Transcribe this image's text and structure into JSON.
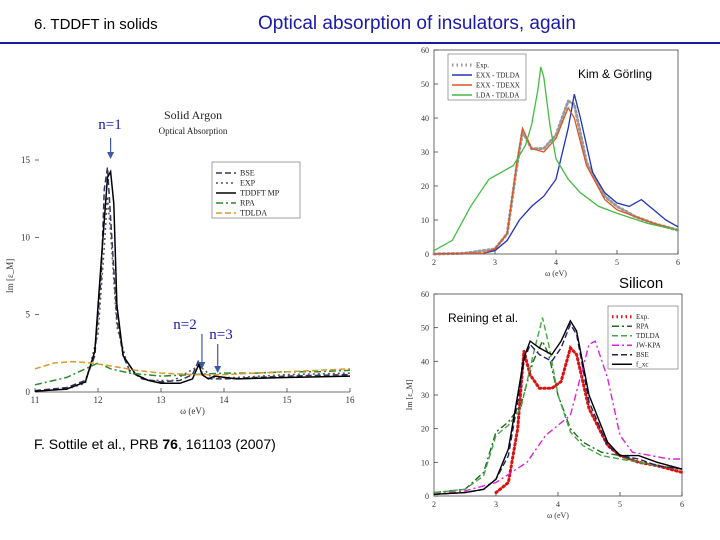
{
  "header": {
    "section": "6. TDDFT in solids",
    "title": "Optical absorption of insulators, again"
  },
  "citation": {
    "prefix": "F. Sottile et al., PRB ",
    "volume": "76",
    "rest": ", 161103 (2007)"
  },
  "colors": {
    "title_blue": "#1a1aa8"
  },
  "chart_data": [
    {
      "type": "line",
      "title": "Solid Argon",
      "subtitle": "Optical Absorption",
      "xlabel": "ω (eV)",
      "ylabel": "Im [ε_M]",
      "xlim": [
        11,
        16
      ],
      "ylim": [
        0,
        16
      ],
      "xticks": [
        "11",
        "12",
        "13",
        "14",
        "15",
        "16"
      ],
      "yticks": [
        "0",
        "5",
        "10",
        "15"
      ],
      "annotations": {
        "n1": "n=1",
        "n2": "n=2",
        "n3": "n=3"
      },
      "legend": [
        "BSE",
        "EXP",
        "TDDFT MP",
        "RPA",
        "TDLDA"
      ],
      "series": [
        {
          "name": "BSE",
          "color": "#333366",
          "x": [
            11,
            11.5,
            11.8,
            11.95,
            12.05,
            12.1,
            12.15,
            12.2,
            12.3,
            12.4,
            12.5,
            12.7,
            13,
            13.3,
            13.5,
            13.6,
            13.65,
            13.7,
            13.8,
            14,
            14.5,
            15,
            16
          ],
          "y": [
            0.1,
            0.3,
            0.8,
            2.5,
            8,
            14,
            15.5,
            12,
            5,
            2.5,
            1.5,
            0.9,
            0.7,
            0.8,
            1.2,
            2.2,
            1.3,
            1.0,
            0.9,
            0.9,
            1.0,
            1.1,
            1.2
          ]
        },
        {
          "name": "EXP",
          "color": "#555555",
          "x": [
            11.5,
            11.8,
            12,
            12.1,
            12.15,
            12.2,
            12.3,
            12.5,
            12.8,
            13.2,
            13.6,
            13.7,
            13.8,
            14.2,
            15,
            16
          ],
          "y": [
            0.2,
            0.6,
            4,
            10,
            13.5,
            11,
            4.5,
            1.4,
            0.8,
            0.8,
            1.8,
            1.5,
            1.0,
            1.0,
            1.2,
            1.3
          ]
        },
        {
          "name": "TDDFT MP",
          "color": "#000000",
          "x": [
            11,
            11.5,
            11.8,
            11.95,
            12.05,
            12.15,
            12.2,
            12.25,
            12.3,
            12.4,
            12.6,
            12.8,
            13,
            13.3,
            13.5,
            13.6,
            13.65,
            13.75,
            13.85,
            14.2,
            15,
            16
          ],
          "y": [
            0.05,
            0.2,
            0.7,
            2.8,
            9,
            14.8,
            15.2,
            13,
            6,
            2.5,
            1.2,
            0.8,
            0.6,
            0.6,
            0.9,
            1.9,
            1.2,
            0.9,
            1.1,
            0.9,
            1.0,
            1.1
          ]
        },
        {
          "name": "RPA",
          "color": "#2a8a2a",
          "x": [
            11,
            11.5,
            11.8,
            12,
            12.2,
            12.5,
            13,
            13.5,
            14,
            14.5,
            15,
            15.5,
            16
          ],
          "y": [
            0.5,
            1.0,
            1.6,
            2.0,
            1.6,
            1.3,
            1.1,
            1.2,
            1.3,
            1.3,
            1.4,
            1.4,
            1.5
          ]
        },
        {
          "name": "TDLDA",
          "color": "#d99a2b",
          "x": [
            11,
            11.3,
            11.6,
            11.9,
            12.2,
            12.6,
            13,
            13.5,
            14,
            14.5,
            15,
            15.5,
            16
          ],
          "y": [
            1.6,
            2.0,
            2.1,
            2.0,
            1.8,
            1.5,
            1.3,
            1.2,
            1.2,
            1.3,
            1.4,
            1.5,
            1.6
          ]
        }
      ]
    },
    {
      "type": "line",
      "title": "",
      "xlabel": "ω (eV)",
      "ylabel": "",
      "xlim": [
        2,
        6
      ],
      "ylim": [
        0,
        60
      ],
      "xticks": [
        "2",
        "3",
        "4",
        "5",
        "6"
      ],
      "yticks": [
        "0",
        "10",
        "20",
        "30",
        "40",
        "50",
        "60"
      ],
      "annotation": "Kim & Görling",
      "legend": [
        "Exp.",
        "EXX - TDLDA",
        "EXX - TDEXX",
        "LDA - TDLDA"
      ],
      "series": [
        {
          "name": "Exp.",
          "color": "#999999",
          "x": [
            2,
            2.5,
            3,
            3.2,
            3.35,
            3.45,
            3.6,
            3.8,
            4,
            4.2,
            4.3,
            4.5,
            4.8,
            5,
            5.3,
            5.6,
            6
          ],
          "y": [
            0,
            0.2,
            1.5,
            6,
            25,
            36,
            31,
            31,
            35,
            45,
            44,
            27,
            17,
            14,
            11,
            9,
            7
          ]
        },
        {
          "name": "EXX - TDLDA",
          "color": "#2233bb",
          "x": [
            2,
            2.8,
            3,
            3.2,
            3.4,
            3.6,
            3.8,
            4,
            4.2,
            4.3,
            4.4,
            4.6,
            4.8,
            5,
            5.2,
            5.4,
            5.6,
            5.8,
            6
          ],
          "y": [
            0,
            0.2,
            1,
            4,
            10,
            14,
            17,
            22,
            37,
            47,
            40,
            24,
            18,
            15,
            14,
            16,
            13,
            10,
            8
          ]
        },
        {
          "name": "EXX - TDEXX",
          "color": "#dd5522",
          "x": [
            2,
            2.8,
            3,
            3.2,
            3.35,
            3.45,
            3.6,
            3.8,
            4,
            4.2,
            4.3,
            4.5,
            4.8,
            5,
            5.3,
            5.6,
            6
          ],
          "y": [
            0,
            0.2,
            1.5,
            6,
            26,
            37,
            31,
            30,
            34,
            43,
            40,
            26,
            16,
            13,
            11,
            9,
            7
          ]
        },
        {
          "name": "LDA - TDLDA",
          "color": "#44bb44",
          "x": [
            2,
            2.3,
            2.6,
            2.9,
            3.1,
            3.3,
            3.5,
            3.6,
            3.7,
            3.75,
            3.8,
            3.9,
            4,
            4.2,
            4.4,
            4.7,
            5,
            5.5,
            6
          ],
          "y": [
            1,
            4,
            14,
            22,
            24,
            26,
            32,
            38,
            48,
            55,
            52,
            38,
            28,
            22,
            18,
            14,
            12,
            9,
            7
          ]
        }
      ]
    },
    {
      "type": "line",
      "title": "Silicon",
      "xlabel": "ω (eV)",
      "ylabel": "Im [ε_M]",
      "xlim": [
        2,
        6
      ],
      "ylim": [
        0,
        60
      ],
      "xticks": [
        "2",
        "3",
        "4",
        "5",
        "6"
      ],
      "yticks": [
        "0",
        "10",
        "20",
        "30",
        "40",
        "50",
        "60"
      ],
      "annotation": "Reining et al.",
      "legend": [
        "Exp.",
        "RPA",
        "TDLDA",
        "JW-KPA",
        "BSE",
        "f_xc"
      ],
      "series": [
        {
          "name": "Exp.",
          "color": "#dd1111",
          "x": [
            3,
            3.2,
            3.35,
            3.45,
            3.55,
            3.7,
            3.9,
            4.05,
            4.2,
            4.3,
            4.5,
            4.8,
            5,
            5.3,
            5.6,
            6
          ],
          "y": [
            1,
            4,
            20,
            43,
            36,
            32,
            32,
            34,
            44,
            42,
            26,
            15,
            12,
            10,
            9,
            7
          ]
        },
        {
          "name": "RPA",
          "color": "#226622",
          "x": [
            2,
            2.5,
            2.8,
            3,
            3.2,
            3.4,
            3.6,
            3.75,
            3.85,
            4,
            4.2,
            4.4,
            4.7,
            5,
            5.3,
            5.6,
            6
          ],
          "y": [
            1,
            2,
            7,
            19,
            22,
            27,
            40,
            46,
            42,
            30,
            20,
            16,
            13,
            12,
            10,
            9,
            8
          ]
        },
        {
          "name": "TDLDA",
          "color": "#44aa44",
          "x": [
            2,
            2.5,
            2.8,
            3,
            3.2,
            3.4,
            3.6,
            3.75,
            3.85,
            4,
            4.2,
            4.4,
            4.7,
            5,
            5.3,
            5.6,
            6
          ],
          "y": [
            1,
            2,
            6,
            18,
            21,
            26,
            42,
            53,
            45,
            30,
            19,
            15,
            12,
            11,
            10,
            9,
            8
          ]
        },
        {
          "name": "JW-KPA",
          "color": "#dd22dd",
          "x": [
            2,
            2.5,
            3,
            3.5,
            3.8,
            4,
            4.2,
            4.4,
            4.5,
            4.6,
            4.8,
            5,
            5.2,
            5.5,
            5.8,
            6
          ],
          "y": [
            0.5,
            1.5,
            4,
            10,
            18,
            21,
            24,
            38,
            45,
            46,
            35,
            18,
            13,
            12,
            11,
            11
          ]
        },
        {
          "name": "BSE",
          "color": "#222266",
          "x": [
            2,
            2.5,
            2.8,
            3,
            3.2,
            3.35,
            3.45,
            3.55,
            3.7,
            3.9,
            4.05,
            4.2,
            4.3,
            4.5,
            4.8,
            5,
            5.3,
            5.6,
            6
          ],
          "y": [
            0.5,
            1,
            2,
            5,
            12,
            28,
            40,
            45,
            42,
            40,
            44,
            51,
            48,
            28,
            15,
            12,
            11,
            9,
            8
          ]
        },
        {
          "name": "f_xc",
          "color": "#000000",
          "x": [
            2,
            2.5,
            2.8,
            3,
            3.2,
            3.35,
            3.45,
            3.55,
            3.7,
            3.9,
            4.05,
            4.2,
            4.3,
            4.5,
            4.8,
            5,
            5.3,
            5.6,
            6
          ],
          "y": [
            0.5,
            1,
            2,
            5,
            14,
            30,
            41,
            46,
            44,
            42,
            46,
            52,
            49,
            30,
            16,
            12,
            12,
            10,
            8
          ]
        }
      ]
    }
  ]
}
